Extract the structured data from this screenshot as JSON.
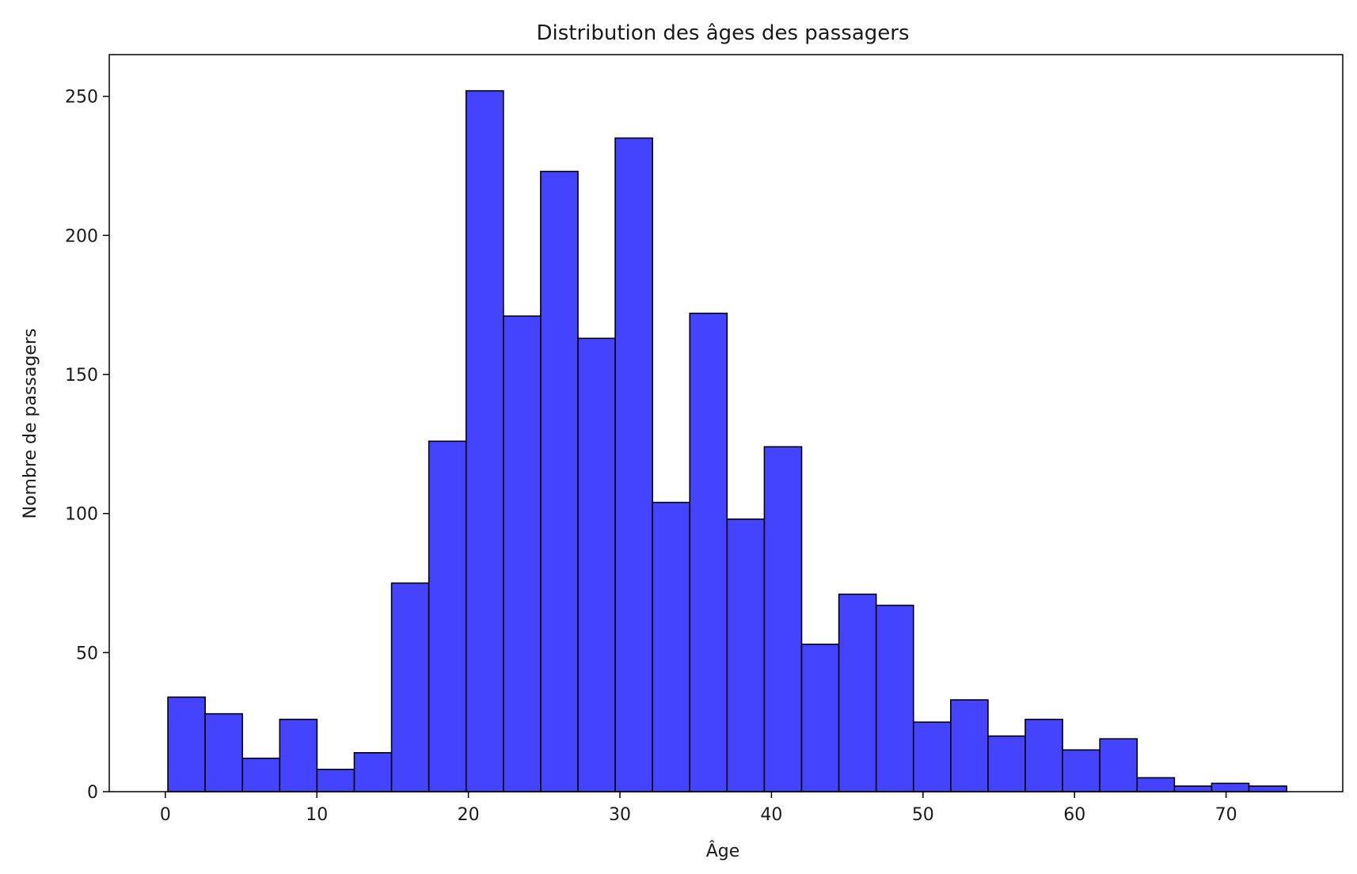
{
  "chart_data": {
    "type": "bar",
    "title": "Distribution des âges des passagers",
    "xlabel": "Âge",
    "ylabel": "Nombre de passagers",
    "xlim": [
      -3.7,
      77.7
    ],
    "ylim": [
      0,
      265
    ],
    "x_ticks": [
      0,
      10,
      20,
      30,
      40,
      50,
      60,
      70
    ],
    "y_ticks": [
      0,
      50,
      100,
      150,
      200,
      250
    ],
    "grid": false,
    "legend": "none",
    "bin_edges": [
      0.17,
      2.63,
      5.09,
      7.55,
      10.01,
      12.47,
      14.93,
      17.39,
      19.85,
      22.31,
      24.77,
      27.23,
      29.69,
      32.15,
      34.61,
      37.07,
      39.53,
      41.99,
      44.45,
      46.91,
      49.37,
      51.83,
      54.29,
      56.75,
      59.21,
      61.67,
      64.13,
      66.59,
      69.05,
      71.51,
      74.0
    ],
    "values": [
      34,
      28,
      12,
      26,
      8,
      14,
      75,
      126,
      252,
      171,
      223,
      163,
      235,
      104,
      172,
      98,
      124,
      53,
      71,
      67,
      25,
      33,
      20,
      26,
      15,
      19,
      5,
      2,
      3,
      2
    ],
    "colors": {
      "bar_fill": "#4444ff",
      "bar_edge": "#000000",
      "axis": "#000000",
      "text": "#1a1a1a"
    }
  }
}
